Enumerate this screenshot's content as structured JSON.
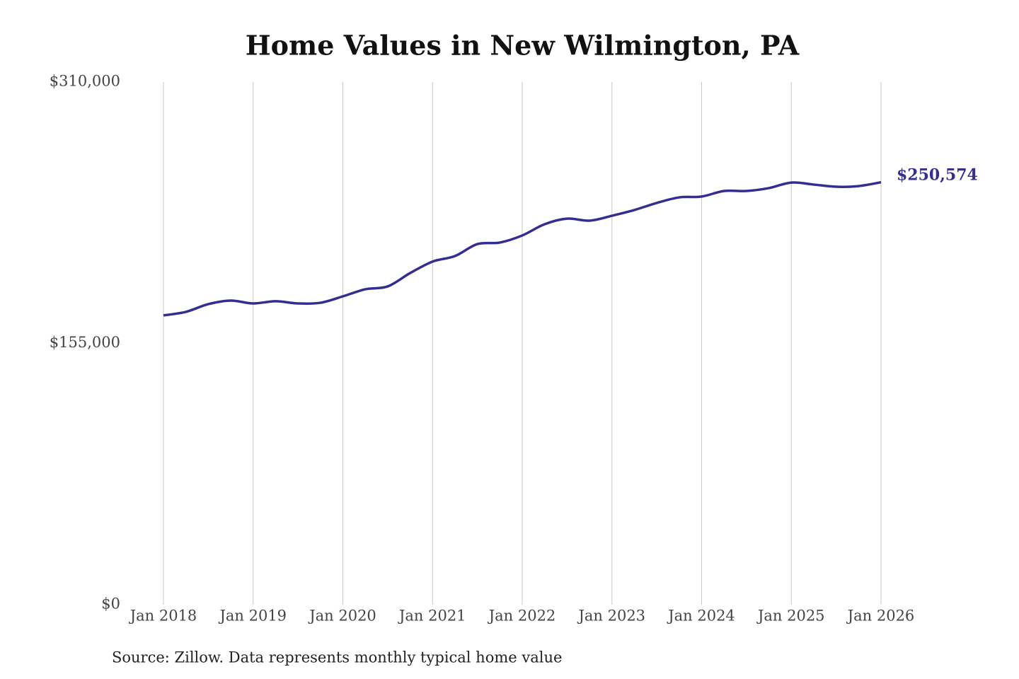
{
  "chart_data": {
    "type": "line",
    "title": "Home Values in New Wilmington, PA",
    "source": "Source: Zillow. Data represents monthly typical home value",
    "x": [
      "2018-01",
      "2018-04",
      "2018-07",
      "2018-10",
      "2019-01",
      "2019-04",
      "2019-07",
      "2019-10",
      "2020-01",
      "2020-04",
      "2020-07",
      "2020-10",
      "2021-01",
      "2021-04",
      "2021-07",
      "2021-10",
      "2022-01",
      "2022-04",
      "2022-07",
      "2022-10",
      "2023-01",
      "2023-04",
      "2023-07",
      "2023-10",
      "2024-01",
      "2024-04",
      "2024-07",
      "2024-10",
      "2025-01",
      "2025-04",
      "2025-07",
      "2025-10",
      "2026-01"
    ],
    "values": [
      171600,
      173700,
      178300,
      180400,
      178700,
      180000,
      178700,
      179100,
      182900,
      187100,
      188800,
      196700,
      203500,
      206800,
      213900,
      214800,
      219000,
      225700,
      229000,
      227800,
      230700,
      234100,
      238300,
      241600,
      242100,
      245400,
      245400,
      247100,
      250400,
      249200,
      247900,
      248300,
      250574
    ],
    "value_labels": [
      null,
      null,
      null,
      null,
      null,
      null,
      null,
      null,
      null,
      null,
      null,
      null,
      null,
      null,
      null,
      null,
      null,
      null,
      null,
      null,
      null,
      null,
      null,
      null,
      null,
      null,
      null,
      null,
      null,
      null,
      null,
      null,
      "$250,574"
    ],
    "color": "#352d91",
    "ylim": [
      0,
      310000
    ],
    "yticks": [
      {
        "value": 0,
        "label": "$0"
      },
      {
        "value": 155000,
        "label": "$155,000"
      },
      {
        "value": 310000,
        "label": "$310,000"
      }
    ],
    "xticks": [
      {
        "value": "2018-01",
        "label": "Jan 2018"
      },
      {
        "value": "2019-01",
        "label": "Jan 2019"
      },
      {
        "value": "2020-01",
        "label": "Jan 2020"
      },
      {
        "value": "2021-01",
        "label": "Jan 2021"
      },
      {
        "value": "2022-01",
        "label": "Jan 2022"
      },
      {
        "value": "2023-01",
        "label": "Jan 2023"
      },
      {
        "value": "2024-01",
        "label": "Jan 2024"
      },
      {
        "value": "2025-01",
        "label": "Jan 2025"
      },
      {
        "value": "2026-01",
        "label": "Jan 2026"
      }
    ],
    "grid": "x"
  }
}
